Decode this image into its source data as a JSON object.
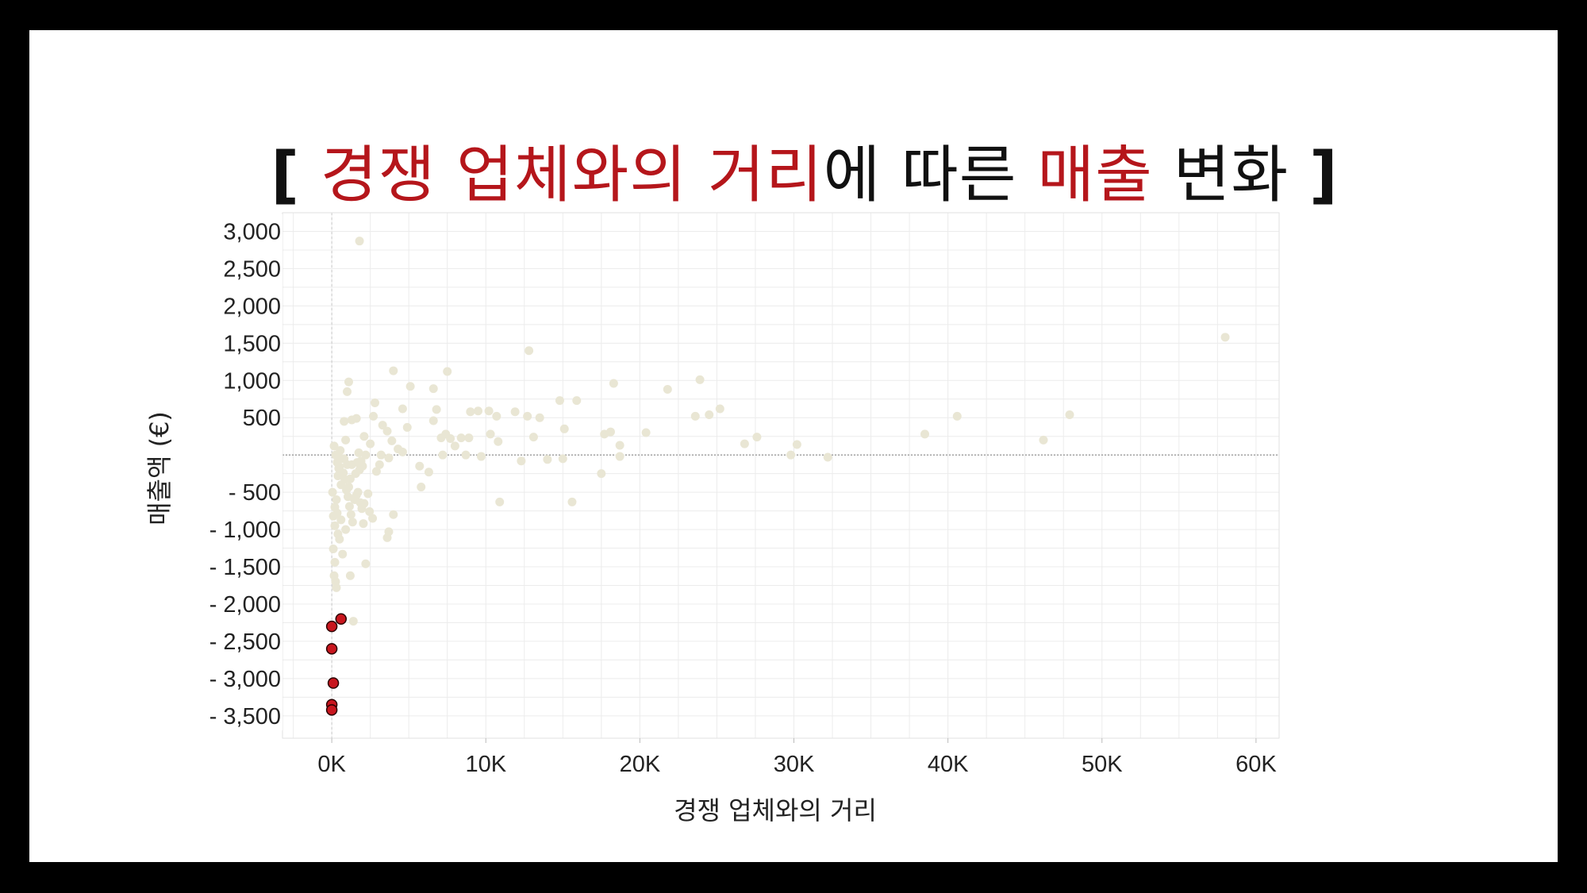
{
  "title": {
    "open": "[",
    "h1": "경쟁 업체와의 거리",
    "mid": "에 따른 ",
    "h2": "매출",
    "tail": " 변화",
    "close": "]"
  },
  "colors": {
    "highlight": "#b5161b",
    "point": "#e9e6d4",
    "outlier": "#c8161e",
    "grid": "#ececec"
  },
  "chart_data": {
    "type": "scatter",
    "xlabel": "경쟁 업체와의 거리",
    "ylabel": "매출액 (€)",
    "xlim": [
      -3200,
      61500
    ],
    "ylim": [
      -3800,
      3250
    ],
    "x_ticks": [
      0,
      10000,
      20000,
      30000,
      40000,
      50000,
      60000
    ],
    "x_tick_labels": [
      "0K",
      "10K",
      "20K",
      "30K",
      "40K",
      "50K",
      "60K"
    ],
    "y_ticks": [
      3000,
      2500,
      2000,
      1500,
      1000,
      500,
      -500,
      -1000,
      -1500,
      -2000,
      -2500,
      -3000,
      -3500
    ],
    "y_tick_labels": [
      "3,000",
      "2,500",
      "2,000",
      "1,500",
      "1,000",
      "500",
      "- 500",
      "- 1,000",
      "- 1,500",
      "- 2,000",
      "- 2,500",
      "- 3,000",
      "- 3,500"
    ],
    "grid": true,
    "series": [
      {
        "points": [
          [
            1800,
            2870
          ],
          [
            58000,
            1580
          ],
          [
            12800,
            1400
          ],
          [
            4000,
            1130
          ],
          [
            7500,
            1120
          ],
          [
            1100,
            980
          ],
          [
            1000,
            850
          ],
          [
            2800,
            700
          ],
          [
            5100,
            920
          ],
          [
            6600,
            890
          ],
          [
            18300,
            960
          ],
          [
            21800,
            880
          ],
          [
            23900,
            1010
          ],
          [
            14800,
            730
          ],
          [
            15900,
            730
          ],
          [
            13500,
            500
          ],
          [
            12700,
            520
          ],
          [
            11900,
            580
          ],
          [
            9500,
            590
          ],
          [
            10200,
            590
          ],
          [
            10700,
            520
          ],
          [
            9000,
            580
          ],
          [
            4600,
            620
          ],
          [
            6800,
            610
          ],
          [
            6600,
            460
          ],
          [
            1300,
            470
          ],
          [
            1600,
            490
          ],
          [
            800,
            450
          ],
          [
            2700,
            520
          ],
          [
            3300,
            400
          ],
          [
            4900,
            370
          ],
          [
            3600,
            320
          ],
          [
            7100,
            230
          ],
          [
            7700,
            220
          ],
          [
            7400,
            280
          ],
          [
            8400,
            230
          ],
          [
            8900,
            230
          ],
          [
            10300,
            280
          ],
          [
            10800,
            180
          ],
          [
            8000,
            120
          ],
          [
            15100,
            350
          ],
          [
            13100,
            240
          ],
          [
            17700,
            280
          ],
          [
            18100,
            310
          ],
          [
            18700,
            130
          ],
          [
            20400,
            300
          ],
          [
            23600,
            520
          ],
          [
            24500,
            540
          ],
          [
            25200,
            620
          ],
          [
            27600,
            240
          ],
          [
            26800,
            150
          ],
          [
            30200,
            140
          ],
          [
            38500,
            280
          ],
          [
            40600,
            520
          ],
          [
            46200,
            200
          ],
          [
            47900,
            540
          ],
          [
            29800,
            0
          ],
          [
            32200,
            -30
          ],
          [
            18700,
            -20
          ],
          [
            14000,
            -60
          ],
          [
            15000,
            -50
          ],
          [
            12300,
            -80
          ],
          [
            9700,
            -20
          ],
          [
            8700,
            0
          ],
          [
            7200,
            0
          ],
          [
            17500,
            -250
          ],
          [
            15600,
            -630
          ],
          [
            10900,
            -630
          ],
          [
            5700,
            -150
          ],
          [
            6300,
            -230
          ],
          [
            5800,
            -430
          ],
          [
            4600,
            40
          ],
          [
            4300,
            80
          ],
          [
            3900,
            190
          ],
          [
            3700,
            -40
          ],
          [
            3200,
            0
          ],
          [
            3100,
            -130
          ],
          [
            2900,
            -220
          ],
          [
            2500,
            150
          ],
          [
            2200,
            0
          ],
          [
            2100,
            250
          ],
          [
            2000,
            -150
          ],
          [
            1900,
            -80
          ],
          [
            1800,
            -200
          ],
          [
            1700,
            -500
          ],
          [
            1500,
            -600
          ],
          [
            1300,
            -130
          ],
          [
            1200,
            -320
          ],
          [
            1100,
            -430
          ],
          [
            1000,
            -130
          ],
          [
            900,
            200
          ],
          [
            800,
            -50
          ],
          [
            700,
            -250
          ],
          [
            600,
            -400
          ],
          [
            500,
            -160
          ],
          [
            400,
            -280
          ],
          [
            300,
            -600
          ],
          [
            200,
            -700
          ],
          [
            100,
            -820
          ],
          [
            50,
            -500
          ],
          [
            150,
            120
          ],
          [
            250,
            0
          ],
          [
            350,
            -100
          ],
          [
            450,
            -180
          ],
          [
            550,
            60
          ],
          [
            650,
            -50
          ],
          [
            750,
            -240
          ],
          [
            850,
            -330
          ],
          [
            950,
            -470
          ],
          [
            1050,
            -560
          ],
          [
            1150,
            -690
          ],
          [
            1250,
            -800
          ],
          [
            1350,
            -900
          ],
          [
            1450,
            -590
          ],
          [
            1550,
            -250
          ],
          [
            1650,
            -100
          ],
          [
            1750,
            30
          ],
          [
            1850,
            -640
          ],
          [
            1950,
            -720
          ],
          [
            2050,
            -920
          ],
          [
            2350,
            -520
          ],
          [
            2450,
            -760
          ],
          [
            2650,
            -850
          ],
          [
            3700,
            -1030
          ],
          [
            3600,
            -1110
          ],
          [
            4000,
            -800
          ],
          [
            2200,
            -1460
          ],
          [
            1200,
            -1620
          ],
          [
            700,
            -1330
          ],
          [
            500,
            -1130
          ],
          [
            400,
            -1060
          ],
          [
            200,
            -1440
          ],
          [
            150,
            -1620
          ],
          [
            300,
            -1780
          ],
          [
            250,
            -1700
          ],
          [
            100,
            -1260
          ],
          [
            1400,
            -2230
          ],
          [
            200,
            -950
          ],
          [
            350,
            -780
          ],
          [
            600,
            -870
          ],
          [
            900,
            -1000
          ],
          [
            1600,
            -540
          ],
          [
            2100,
            -650
          ]
        ]
      },
      {
        "highlight": true,
        "points": [
          [
            600,
            -2200
          ],
          [
            0,
            -2300
          ],
          [
            0,
            -2600
          ],
          [
            100,
            -3060
          ],
          [
            0,
            -3350
          ],
          [
            0,
            -3420
          ]
        ]
      }
    ]
  }
}
